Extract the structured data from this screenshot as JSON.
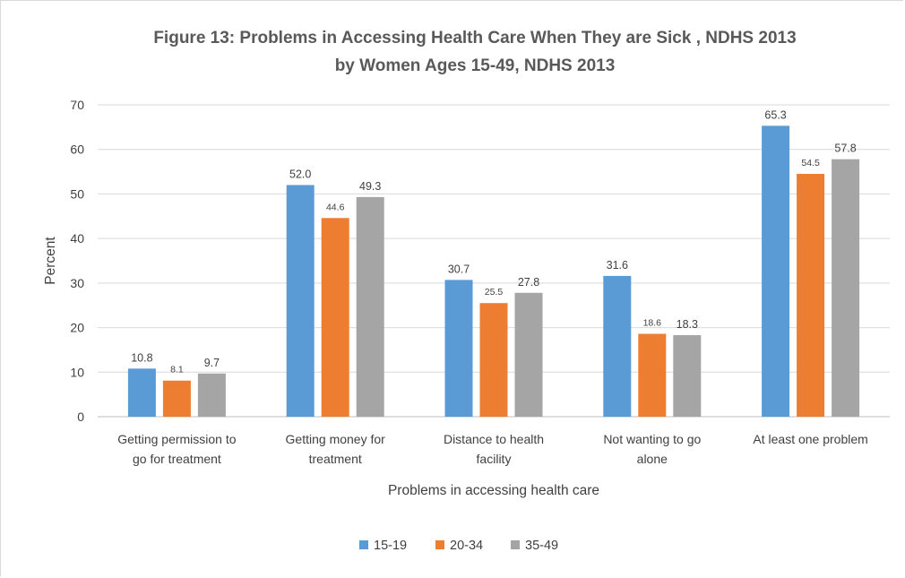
{
  "chart_data": {
    "type": "bar",
    "title_line1": "Figure 13: Problems in Accessing Health Care When They are Sick , NDHS 2013",
    "title_line2": "by Women Ages 15-49, NDHS 2013",
    "xlabel": "Problems in accessing health care",
    "ylabel": "Percent",
    "ylim": [
      0,
      70
    ],
    "yticks": [
      0,
      10,
      20,
      30,
      40,
      50,
      60,
      70
    ],
    "grid": true,
    "legend_position": "bottom",
    "categories": [
      [
        "Getting permission to",
        "go for treatment"
      ],
      [
        "Getting money for",
        "treatment"
      ],
      [
        "Distance to health",
        "facility"
      ],
      [
        "Not wanting to go",
        "alone"
      ],
      [
        "At least one problem"
      ]
    ],
    "series": [
      {
        "name": "15-19",
        "color": "#5b9bd5",
        "values": [
          10.8,
          52.0,
          30.7,
          31.6,
          65.3
        ],
        "labels": [
          "10.8",
          "52.0",
          "30.7",
          "31.6",
          "65.3"
        ]
      },
      {
        "name": "20-34",
        "color": "#ed7d31",
        "values": [
          8.1,
          44.6,
          25.5,
          18.6,
          54.5
        ],
        "labels": [
          "8.1",
          "44.6",
          "25.5",
          "18.6",
          "54.5"
        ]
      },
      {
        "name": "35-49",
        "color": "#a5a5a5",
        "values": [
          9.7,
          49.3,
          27.8,
          18.3,
          57.8
        ],
        "labels": [
          "9.7",
          "49.3",
          "27.8",
          "18.3",
          "57.8"
        ]
      }
    ]
  }
}
